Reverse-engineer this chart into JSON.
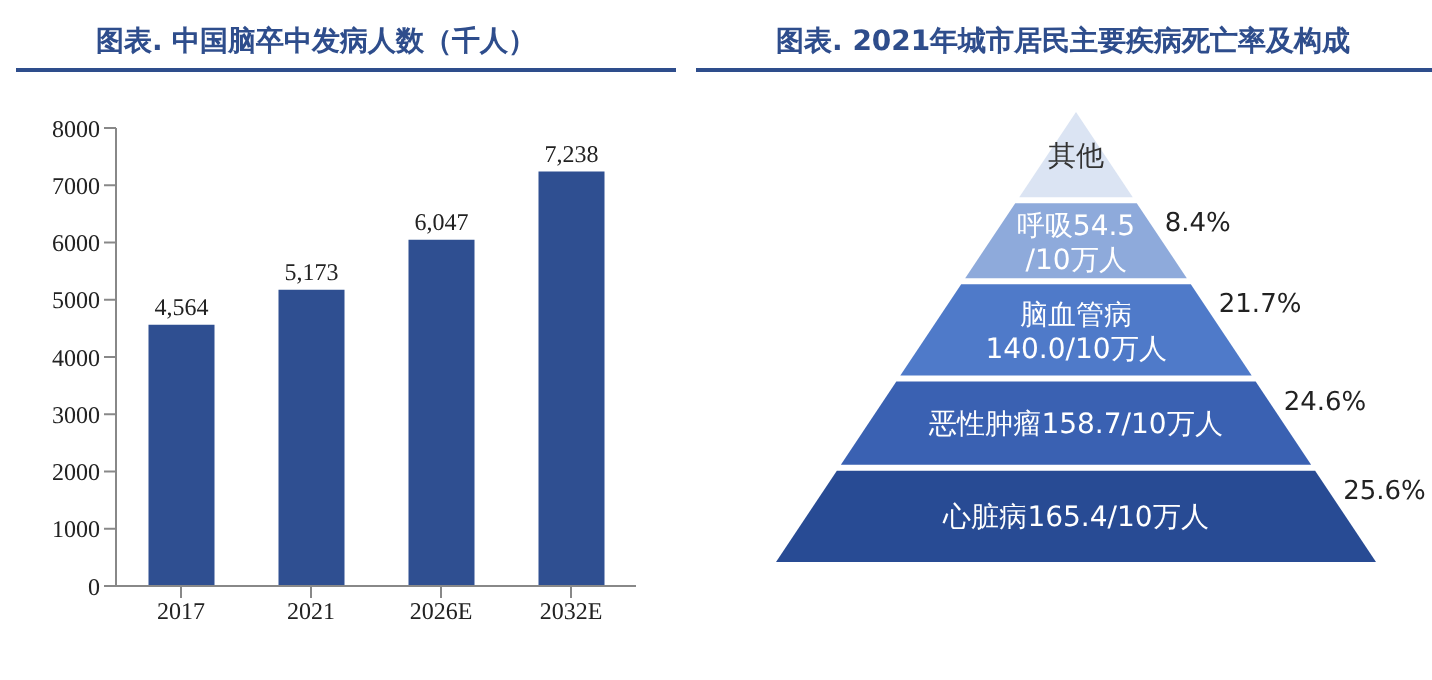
{
  "chart_data": [
    {
      "type": "bar",
      "title": "图表. 中国脑卒中发病人数（千人）",
      "categories": [
        "2017",
        "2021",
        "2026E",
        "2032E"
      ],
      "values": [
        4564,
        5173,
        6047,
        7238
      ],
      "value_labels": [
        "4,564",
        "5,173",
        "6,047",
        "7,238"
      ],
      "color": "#2f4f91",
      "ylim": [
        0,
        8000
      ],
      "yticks": [
        0,
        1000,
        2000,
        3000,
        4000,
        5000,
        6000,
        7000,
        8000
      ],
      "grid": false
    },
    {
      "type": "other",
      "title": "图表. 2021年城市居民主要疾病死亡率及构成",
      "categories": [
        "其他",
        "呼吸54.5\n/10万人",
        "脑血管病\n140.0/10万人",
        "恶性肿瘤158.7/10万人",
        "心脏病165.4/10万人"
      ],
      "value_labels": [
        null,
        "8.4%",
        "21.7%",
        "24.6%",
        "25.6%"
      ],
      "colors": [
        "#dbe4f3",
        "#8eaadb",
        "#4f7ac9",
        "#3a61b2",
        "#284b94"
      ]
    }
  ]
}
